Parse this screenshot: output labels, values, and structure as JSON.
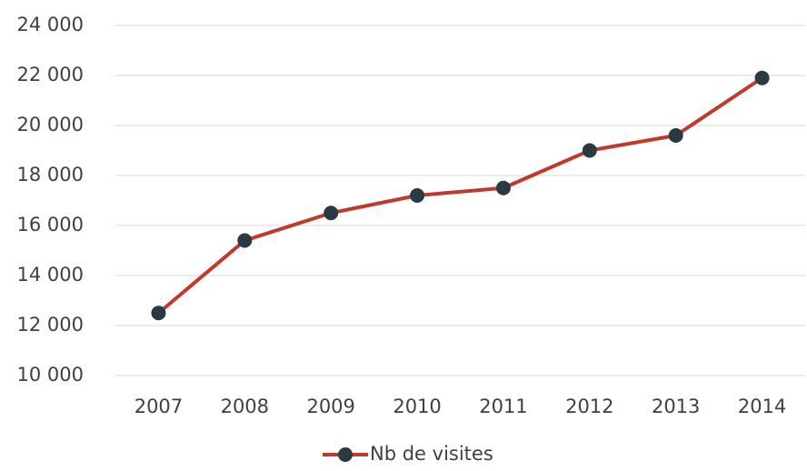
{
  "chart_data": {
    "type": "line",
    "categories": [
      "2007",
      "2008",
      "2009",
      "2010",
      "2011",
      "2012",
      "2013",
      "2014"
    ],
    "series": [
      {
        "name": "Nb de visites",
        "color": "#c0392b",
        "marker_color": "#2b3a42",
        "values": [
          12500,
          15400,
          16500,
          17200,
          17500,
          19000,
          19600,
          21900
        ]
      }
    ],
    "ylim": [
      10000,
      24000
    ],
    "yticks": [
      {
        "value": 10000,
        "label": "10 000"
      },
      {
        "value": 12000,
        "label": "12 000"
      },
      {
        "value": 14000,
        "label": "14 000"
      },
      {
        "value": 16000,
        "label": "16 000"
      },
      {
        "value": 18000,
        "label": "18 000"
      },
      {
        "value": 20000,
        "label": "20 000"
      },
      {
        "value": 22000,
        "label": "22 000"
      },
      {
        "value": 24000,
        "label": "24 000"
      }
    ],
    "grid": true,
    "legend": "bottom"
  }
}
